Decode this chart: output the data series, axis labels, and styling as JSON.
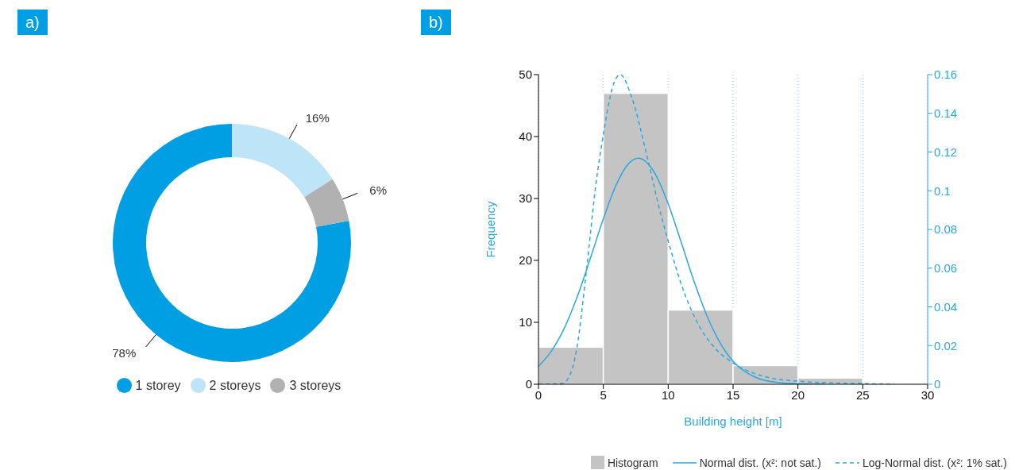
{
  "chart_data": [
    {
      "type": "donut",
      "title": "a)",
      "categories": [
        "1 storey",
        "2 storeys",
        "3 storeys"
      ],
      "values": [
        78,
        16,
        6
      ],
      "colors": [
        "#009fe3",
        "#bee4f8",
        "#b1b1b1"
      ],
      "value_labels": [
        "78%",
        "16%",
        "6%"
      ],
      "legend": "bottom"
    },
    {
      "type": "histogram",
      "title": "b)",
      "xlabel": "Building height [m]",
      "ylabel": "Frequency",
      "xlim": [
        0,
        30
      ],
      "xticks": [
        0,
        5,
        10,
        15,
        20,
        25,
        30
      ],
      "ylim": [
        0,
        50
      ],
      "yticks": [
        0,
        10,
        20,
        30,
        40,
        50
      ],
      "y2lim": [
        0,
        0.16
      ],
      "y2ticks": [
        0,
        0.02,
        0.04,
        0.06,
        0.08,
        0.1,
        0.12,
        0.14,
        0.16
      ],
      "grid": "x",
      "legend": "bottom",
      "series": [
        {
          "name": "Histogram",
          "type": "histogram",
          "color": "#c4c4c4",
          "bins": [
            0,
            5,
            10,
            15,
            20,
            25
          ],
          "values": [
            6,
            47,
            12,
            3,
            1
          ]
        },
        {
          "name": "Normal dist. (x²: not sat.)",
          "type": "line",
          "axis": "y2",
          "color": "#29a8e0",
          "line_style": "solid",
          "x": [
            0,
            1,
            2,
            3,
            4,
            5,
            6,
            7,
            7.7,
            8,
            9,
            10,
            11,
            12,
            13,
            14,
            15,
            16,
            17,
            18,
            19,
            20,
            22
          ],
          "values": [
            0.0093,
            0.0172,
            0.0291,
            0.0454,
            0.0651,
            0.0855,
            0.1032,
            0.1144,
            0.1168,
            0.1163,
            0.1087,
            0.0932,
            0.0734,
            0.053,
            0.0352,
            0.0214,
            0.0119,
            0.0062,
            0.0029,
            0.0013,
            0.0005,
            0.0002,
            0
          ]
        },
        {
          "name": "Log-Normal dist. (x²: 1% sat.)",
          "type": "line",
          "axis": "y2",
          "color": "#29a8e0",
          "line_style": "dashed",
          "x": [
            0,
            1.8,
            2.44,
            2.94,
            3.7,
            4.44,
            5,
            5.69,
            6.3,
            7.2,
            8.4,
            9.2,
            10,
            11.2,
            12.4,
            13.7,
            15,
            17.4,
            20,
            25,
            27.4
          ],
          "values": [
            0,
            0.0003,
            0.005,
            0.018,
            0.059,
            0.104,
            0.129,
            0.153,
            0.16,
            0.148,
            0.117,
            0.094,
            0.074,
            0.048,
            0.03,
            0.018,
            0.011,
            0.004,
            0.0016,
            0.0003,
            0
          ]
        }
      ]
    }
  ]
}
